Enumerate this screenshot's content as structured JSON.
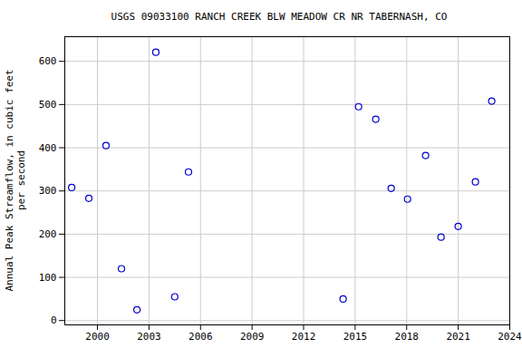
{
  "chart_data": {
    "type": "scatter",
    "title": "USGS 09033100 RANCH CREEK BLW MEADOW CR NR TABERNASH, CO",
    "y_label": "Annual Peak Streamflow, in cubic feet per second",
    "x": [
      1998.5,
      1999.5,
      2000.5,
      2001.4,
      2002.3,
      2003.4,
      2004.5,
      2005.3,
      2014.3,
      2015.2,
      2016.2,
      2017.1,
      2018.05,
      2019.1,
      2020.0,
      2021.0,
      2022.0,
      2022.95
    ],
    "values": [
      308,
      283,
      405,
      120,
      25,
      621,
      55,
      344,
      50,
      495,
      466,
      306,
      281,
      382,
      193,
      218,
      321,
      508
    ],
    "color": "#0000cc",
    "marker": "circle",
    "xlim": [
      1998.1,
      2024
    ],
    "xticks": [
      2000,
      2003,
      2006,
      2009,
      2012,
      2015,
      2018,
      2021,
      2024
    ],
    "ylim": [
      -10,
      657
    ],
    "yticks": [
      0,
      100,
      200,
      300,
      400,
      500,
      600
    ],
    "grid": true
  }
}
